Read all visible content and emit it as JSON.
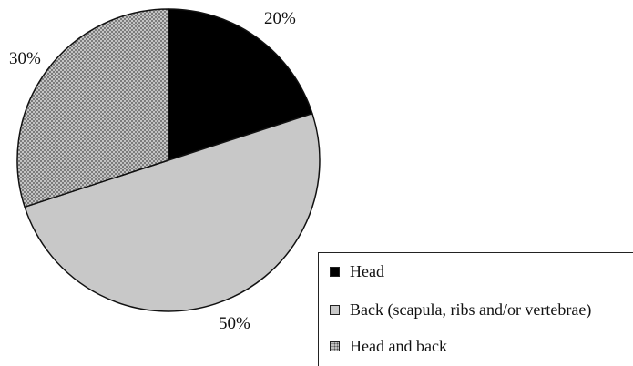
{
  "chart_data": {
    "type": "pie",
    "slices": [
      {
        "label": "Head",
        "value": 20,
        "value_label": "20%",
        "color": "#000000",
        "pattern": "solid"
      },
      {
        "label": "Back (scapula, ribs and/or vertebrae)",
        "value": 50,
        "value_label": "50%",
        "color": "#c8c8c8",
        "pattern": "solid"
      },
      {
        "label": "Head and back",
        "value": 30,
        "value_label": "30%",
        "color": "#bdbdbd",
        "pattern": "dotted"
      }
    ],
    "start_angle": "12 o'clock",
    "direction": "clockwise",
    "legend": {
      "position": "bottom-right",
      "items": [
        {
          "label": "Head",
          "swatch": "black"
        },
        {
          "label": "Back (scapula, ribs and/or vertebrae)",
          "swatch": "grey"
        },
        {
          "label": "Head and back",
          "swatch": "dotted"
        }
      ]
    },
    "title": "",
    "grid": false
  }
}
